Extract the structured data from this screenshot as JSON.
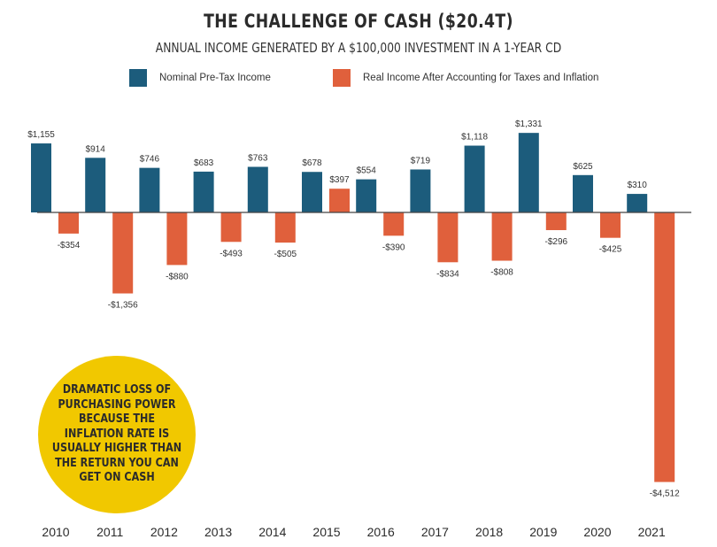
{
  "title": "THE CHALLENGE OF CASH ($20.4T)",
  "subtitle": "ANNUAL INCOME GENERATED BY A $100,000 INVESTMENT IN A 1-YEAR CD",
  "callout": "DRAMATIC LOSS OF PURCHASING POWER BECAUSE THE INFLATION RATE IS USUALLY HIGHER THAN THE RETURN YOU CAN GET ON CASH",
  "colors": {
    "nominal": "#1c5c7c",
    "real": "#e0603c",
    "callout": "#f1c800",
    "text": "#333333",
    "axis": "#444444"
  },
  "chart_data": {
    "type": "bar",
    "title": "THE CHALLENGE OF CASH ($20.4T)",
    "subtitle": "ANNUAL INCOME GENERATED BY A $100,000 INVESTMENT IN A 1-YEAR CD",
    "xlabel": "",
    "ylabel": "",
    "categories": [
      "2010",
      "2011",
      "2012",
      "2013",
      "2014",
      "2015",
      "2016",
      "2017",
      "2018",
      "2019",
      "2020",
      "2021"
    ],
    "series": [
      {
        "name": "Nominal Pre-Tax Income",
        "values": [
          1155,
          914,
          746,
          683,
          763,
          678,
          554,
          719,
          1118,
          1331,
          625,
          310
        ],
        "labels": [
          "$1,155",
          "$914",
          "$746",
          "$683",
          "$763",
          "$678",
          "$554",
          "$719",
          "$1,118",
          "$1,331",
          "$625",
          "$310"
        ]
      },
      {
        "name": "Real Income After Accounting for Taxes and Inflation",
        "values": [
          -354,
          -1356,
          -880,
          -493,
          -505,
          397,
          -390,
          -834,
          -808,
          -296,
          -425,
          -4512
        ],
        "labels": [
          "-$354",
          "-$1,356",
          "-$880",
          "-$493",
          "-$505",
          "$397",
          "-$390",
          "-$834",
          "-$808",
          "-$296",
          "-$425",
          "-$4,512"
        ]
      }
    ],
    "ylim": [
      -4512,
      1331
    ],
    "grid": false,
    "legend": "top"
  }
}
